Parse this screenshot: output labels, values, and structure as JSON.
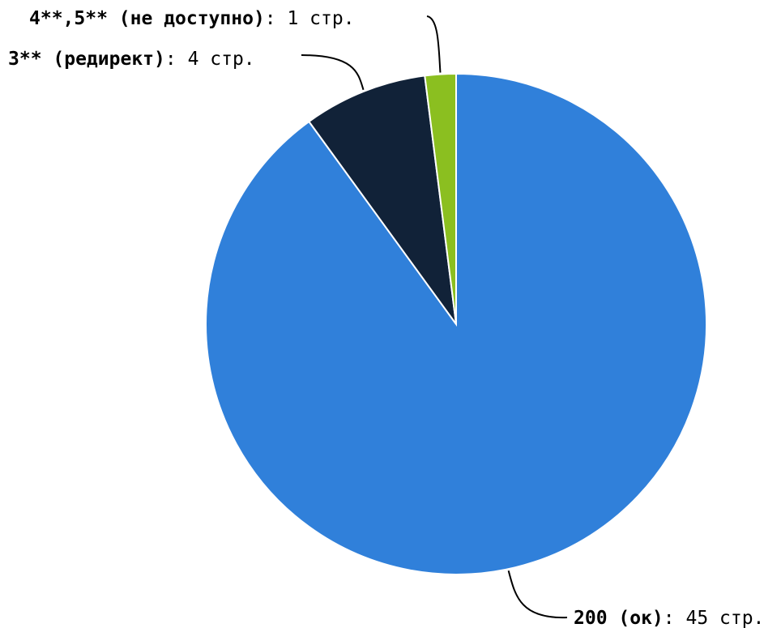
{
  "chart_data": {
    "type": "pie",
    "title": "",
    "value_suffix": " стр.",
    "slices": [
      {
        "name": "200 (ок)",
        "value": 45,
        "color": "#3080da"
      },
      {
        "name": "3** (редирект)",
        "value": 4,
        "color": "#112238"
      },
      {
        "name": "4**,5** (не доступно)",
        "value": 1,
        "color": "#8bbf20"
      }
    ],
    "legend": "none",
    "start_angle": "top",
    "direction": "clockwise"
  }
}
